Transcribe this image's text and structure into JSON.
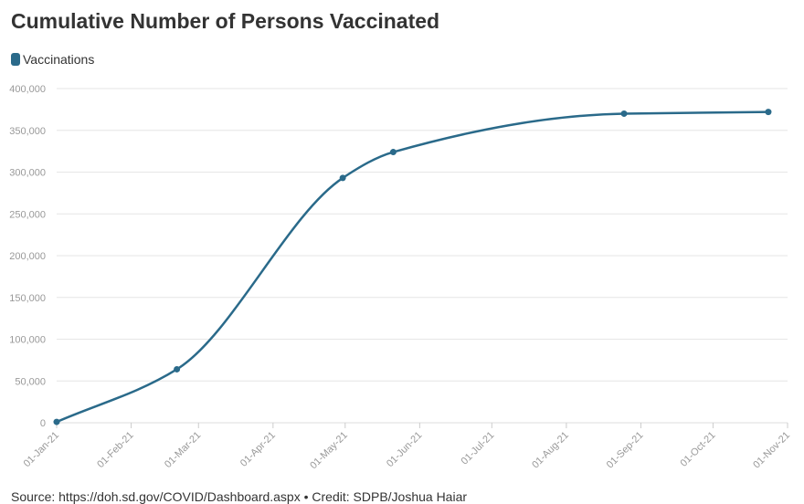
{
  "chart_data": {
    "type": "line",
    "title": "Cumulative Number of Persons Vaccinated",
    "xlabel": "",
    "ylabel": "",
    "ylim": [
      0,
      400000
    ],
    "y_ticks": [
      0,
      50000,
      100000,
      150000,
      200000,
      250000,
      300000,
      350000,
      400000
    ],
    "y_tick_labels": [
      "0",
      "50,000",
      "100,000",
      "150,000",
      "200,000",
      "250,000",
      "300,000",
      "350,000",
      "400,000"
    ],
    "xlim": [
      "2021-01-01",
      "2021-11-01"
    ],
    "x_ticks": [
      "2021-01-01",
      "2021-02-01",
      "2021-03-01",
      "2021-04-01",
      "2021-05-01",
      "2021-06-01",
      "2021-07-01",
      "2021-08-01",
      "2021-09-01",
      "2021-10-01",
      "2021-11-01"
    ],
    "x_tick_labels": [
      "01-Jan-21",
      "01-Feb-21",
      "01-Mar-21",
      "01-Apr-21",
      "01-May-21",
      "01-Jun-21",
      "01-Jul-21",
      "01-Aug-21",
      "01-Sep-21",
      "01-Oct-21",
      "01-Nov-21"
    ],
    "grid": "horizontal",
    "legend": "top-left",
    "series": [
      {
        "name": "Vaccinations",
        "color": "#2a6a8a",
        "points": [
          {
            "x": "2021-01-01",
            "y": 1000
          },
          {
            "x": "2021-02-20",
            "y": 64000
          },
          {
            "x": "2021-04-30",
            "y": 293000
          },
          {
            "x": "2021-05-21",
            "y": 324000
          },
          {
            "x": "2021-08-25",
            "y": 370000
          },
          {
            "x": "2021-10-24",
            "y": 372000
          }
        ]
      }
    ],
    "source": "Source: https://doh.sd.gov/COVID/Dashboard.aspx • Credit: SDPB/Joshua Haiar"
  }
}
